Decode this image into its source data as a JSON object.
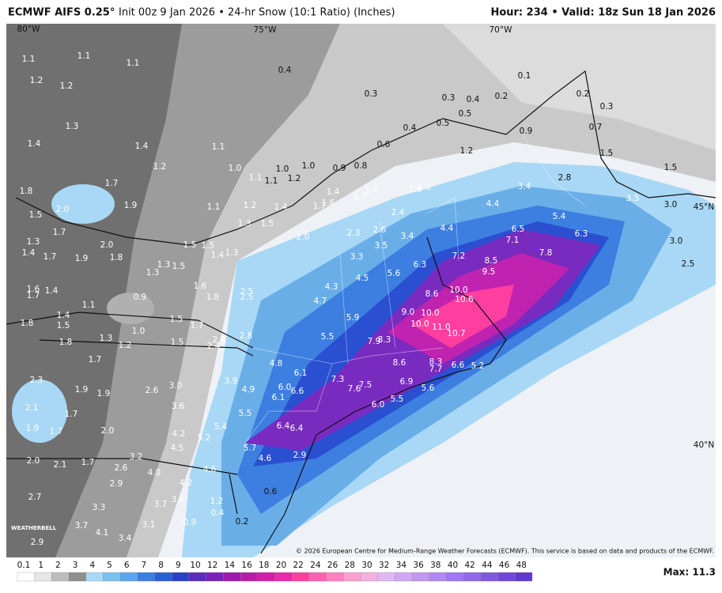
{
  "header": {
    "model": "ECMWF AIFS 0.25°",
    "description": "Init 00z 9 Jan 2026 • 24-hr Snow (10:1 Ratio) (Inches)",
    "valid": "Hour: 234 • Valid: 18z Sun 18 Jan 2026"
  },
  "grid_labels": [
    "80°W",
    "75°W",
    "70°W",
    "45°N",
    "40°N"
  ],
  "map_labels": [
    "1.1",
    "1.1",
    "1.1",
    "0.4",
    "1.2",
    "1.2",
    "0.3",
    "0.3",
    "0.4",
    "0.1",
    "0.2",
    "0.2",
    "0.3",
    "0.5",
    "1.3",
    "0.4",
    "0.5",
    "0.9",
    "0.7",
    "1.4",
    "1.4",
    "1.1",
    "0.6",
    "1.2",
    "1.5",
    "1.2",
    "1.0",
    "1.0",
    "1.0",
    "0.9",
    "0.8",
    "1.5",
    "1.1",
    "1.1",
    "1.2",
    "2.8",
    "1.7",
    "1.4",
    "1.5",
    "1.4",
    "1.8",
    "1.8",
    "3.4",
    "1.8",
    "2.0",
    "1.9",
    "1.5",
    "1.1",
    "1.2",
    "1.4",
    "1.7",
    "1.6",
    "4.4",
    "3.5",
    "3.0",
    "2.4",
    "5.4",
    "1.7",
    "1.3",
    "1.5",
    "2.6",
    "4.4",
    "6.5",
    "6.3",
    "1.3",
    "2.0",
    "1.5",
    "1.5",
    "2.0",
    "2.3",
    "3.4",
    "7.1",
    "1.4",
    "1.7",
    "1.9",
    "1.8",
    "1.3",
    "1.5",
    "1.4",
    "1.3",
    "3.5",
    "7.8",
    "3.0",
    "3.3",
    "6.3",
    "7.2",
    "8.5",
    "1.6",
    "1.7",
    "1.4",
    "0.9",
    "1.3",
    "1.6",
    "1.8",
    "2.5",
    "2.5",
    "4.5",
    "5.6",
    "9.5",
    "2.5",
    "4.3",
    "8.6",
    "10.0",
    "10.6",
    "1.1",
    "4.7",
    "1.4",
    "1.8",
    "1.5",
    "1.0",
    "1.5",
    "1.7",
    "5.9",
    "9.0",
    "10.0",
    "10.0",
    "11.0",
    "10.7",
    "1.3",
    "1.2",
    "1.8",
    "1.5",
    "2.8",
    "2.4",
    "2.4",
    "5.5",
    "7.9",
    "8.3",
    "1.7",
    "4.8",
    "8.6",
    "8.3",
    "7.7",
    "6.6",
    "5.2",
    "6.1",
    "2.3",
    "7.3",
    "7.6",
    "7.5",
    "6.9",
    "3.9",
    "1.9",
    "1.9",
    "2.6",
    "3.0",
    "4.9",
    "6.0",
    "6.6",
    "5.6",
    "6.1",
    "2.1",
    "3.6",
    "5.5",
    "6.0",
    "5.5",
    "1.7",
    "1.9",
    "1.7",
    "2.0",
    "5.4",
    "6.4",
    "6.4",
    "4.2",
    "5.2",
    "4.5",
    "5.7",
    "4.6",
    "2.9",
    "2.0",
    "2.1",
    "1.7",
    "3.2",
    "2.6",
    "4.0",
    "4.6",
    "2.9",
    "4.2",
    "2.7",
    "3.6",
    "3.7",
    "1.2",
    "0.6",
    "3.3",
    "0.4",
    "3.1",
    "0.9",
    "0.2",
    "3.7",
    "4.1",
    "3.4",
    "2.9"
  ],
  "logo": "WEATHERBELL",
  "copyright": "© 2026 European Centre for Medium-Range Weather Forecasts (ECMWF). This service is based on data and products of the ECMWF.",
  "colorbar": {
    "ticks": [
      0.1,
      1,
      2,
      3,
      4,
      5,
      6,
      7,
      8,
      9,
      10,
      12,
      14,
      16,
      18,
      20,
      22,
      24,
      26,
      28,
      30,
      32,
      34,
      36,
      38,
      40,
      42,
      44,
      46,
      48
    ]
  },
  "footer": {
    "max": "Max: 11.3"
  }
}
